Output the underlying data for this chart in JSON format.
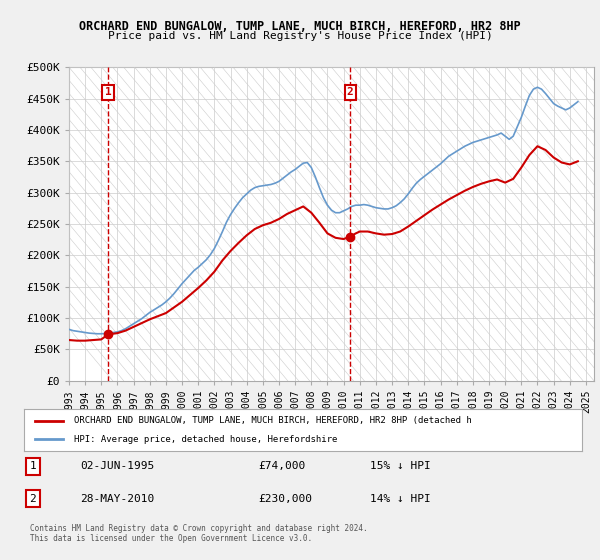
{
  "title": "ORCHARD END BUNGALOW, TUMP LANE, MUCH BIRCH, HEREFORD, HR2 8HP",
  "subtitle": "Price paid vs. HM Land Registry's House Price Index (HPI)",
  "ylabel_ticks": [
    "£0",
    "£50K",
    "£100K",
    "£150K",
    "£200K",
    "£250K",
    "£300K",
    "£350K",
    "£400K",
    "£450K",
    "£500K"
  ],
  "ytick_vals": [
    0,
    50000,
    100000,
    150000,
    200000,
    250000,
    300000,
    350000,
    400000,
    450000,
    500000
  ],
  "ylim": [
    0,
    500000
  ],
  "xlim_start": 1993.0,
  "xlim_end": 2025.5,
  "sale1_x": 1995.42,
  "sale1_y": 74000,
  "sale2_x": 2010.41,
  "sale2_y": 230000,
  "sale1_label": "02-JUN-1995",
  "sale1_price": "£74,000",
  "sale1_hpi": "15% ↓ HPI",
  "sale2_label": "28-MAY-2010",
  "sale2_price": "£230,000",
  "sale2_hpi": "14% ↓ HPI",
  "line1_label": "ORCHARD END BUNGALOW, TUMP LANE, MUCH BIRCH, HEREFORD, HR2 8HP (detached h",
  "line2_label": "HPI: Average price, detached house, Herefordshire",
  "red_color": "#cc0000",
  "blue_color": "#6699cc",
  "background_color": "#f0f0f0",
  "plot_bg_color": "#ffffff",
  "grid_color": "#cccccc",
  "footnote": "Contains HM Land Registry data © Crown copyright and database right 2024.\nThis data is licensed under the Open Government Licence v3.0.",
  "hpi_data_x": [
    1993.0,
    1993.25,
    1993.5,
    1993.75,
    1994.0,
    1994.25,
    1994.5,
    1994.75,
    1995.0,
    1995.25,
    1995.5,
    1995.75,
    1996.0,
    1996.25,
    1996.5,
    1996.75,
    1997.0,
    1997.25,
    1997.5,
    1997.75,
    1998.0,
    1998.25,
    1998.5,
    1998.75,
    1999.0,
    1999.25,
    1999.5,
    1999.75,
    2000.0,
    2000.25,
    2000.5,
    2000.75,
    2001.0,
    2001.25,
    2001.5,
    2001.75,
    2002.0,
    2002.25,
    2002.5,
    2002.75,
    2003.0,
    2003.25,
    2003.5,
    2003.75,
    2004.0,
    2004.25,
    2004.5,
    2004.75,
    2005.0,
    2005.25,
    2005.5,
    2005.75,
    2006.0,
    2006.25,
    2006.5,
    2006.75,
    2007.0,
    2007.25,
    2007.5,
    2007.75,
    2008.0,
    2008.25,
    2008.5,
    2008.75,
    2009.0,
    2009.25,
    2009.5,
    2009.75,
    2010.0,
    2010.25,
    2010.5,
    2010.75,
    2011.0,
    2011.25,
    2011.5,
    2011.75,
    2012.0,
    2012.25,
    2012.5,
    2012.75,
    2013.0,
    2013.25,
    2013.5,
    2013.75,
    2014.0,
    2014.25,
    2014.5,
    2014.75,
    2015.0,
    2015.25,
    2015.5,
    2015.75,
    2016.0,
    2016.25,
    2016.5,
    2016.75,
    2017.0,
    2017.25,
    2017.5,
    2017.75,
    2018.0,
    2018.25,
    2018.5,
    2018.75,
    2019.0,
    2019.25,
    2019.5,
    2019.75,
    2020.0,
    2020.25,
    2020.5,
    2020.75,
    2021.0,
    2021.25,
    2021.5,
    2021.75,
    2022.0,
    2022.25,
    2022.5,
    2022.75,
    2023.0,
    2023.25,
    2023.5,
    2023.75,
    2024.0,
    2024.25,
    2024.5
  ],
  "hpi_data_y": [
    82000,
    80000,
    79000,
    78000,
    77000,
    76000,
    75500,
    75000,
    75000,
    75500,
    76000,
    77000,
    78000,
    80000,
    83000,
    87000,
    91000,
    95000,
    99000,
    104000,
    109000,
    113000,
    117000,
    121000,
    126000,
    132000,
    139000,
    147000,
    155000,
    162000,
    169000,
    176000,
    181000,
    187000,
    193000,
    201000,
    211000,
    224000,
    238000,
    253000,
    265000,
    275000,
    284000,
    292000,
    298000,
    304000,
    308000,
    310000,
    311000,
    312000,
    313000,
    315000,
    318000,
    323000,
    328000,
    333000,
    337000,
    342000,
    347000,
    348000,
    340000,
    325000,
    308000,
    292000,
    280000,
    272000,
    268000,
    268000,
    271000,
    274000,
    278000,
    280000,
    280000,
    281000,
    280000,
    278000,
    276000,
    275000,
    274000,
    274000,
    276000,
    279000,
    284000,
    290000,
    298000,
    307000,
    315000,
    321000,
    326000,
    331000,
    336000,
    341000,
    346000,
    352000,
    358000,
    362000,
    366000,
    370000,
    374000,
    377000,
    380000,
    382000,
    384000,
    386000,
    388000,
    390000,
    392000,
    395000,
    390000,
    385000,
    390000,
    405000,
    420000,
    438000,
    455000,
    465000,
    468000,
    465000,
    458000,
    450000,
    442000,
    438000,
    435000,
    432000,
    435000,
    440000,
    445000
  ],
  "price_data_x": [
    1993.0,
    1993.5,
    1994.0,
    1994.5,
    1995.0,
    1995.42,
    1996.0,
    1996.5,
    1997.0,
    1997.5,
    1998.0,
    1998.5,
    1999.0,
    1999.5,
    2000.0,
    2000.5,
    2001.0,
    2001.5,
    2002.0,
    2002.5,
    2003.0,
    2003.5,
    2004.0,
    2004.5,
    2005.0,
    2005.5,
    2006.0,
    2006.5,
    2007.0,
    2007.5,
    2008.0,
    2008.5,
    2009.0,
    2009.5,
    2010.0,
    2010.41,
    2010.75,
    2011.0,
    2011.5,
    2012.0,
    2012.5,
    2013.0,
    2013.5,
    2014.0,
    2014.5,
    2015.0,
    2015.5,
    2016.0,
    2016.5,
    2017.0,
    2017.5,
    2018.0,
    2018.5,
    2019.0,
    2019.5,
    2020.0,
    2020.5,
    2021.0,
    2021.5,
    2022.0,
    2022.5,
    2023.0,
    2023.5,
    2024.0,
    2024.5
  ],
  "price_data_y": [
    65000,
    64000,
    64000,
    65000,
    66000,
    74000,
    76000,
    80000,
    86000,
    92000,
    98000,
    103000,
    108000,
    117000,
    126000,
    137000,
    148000,
    160000,
    174000,
    192000,
    207000,
    220000,
    232000,
    242000,
    248000,
    252000,
    258000,
    266000,
    272000,
    278000,
    268000,
    252000,
    235000,
    228000,
    226000,
    230000,
    235000,
    238000,
    238000,
    235000,
    233000,
    234000,
    238000,
    246000,
    255000,
    264000,
    273000,
    281000,
    289000,
    296000,
    303000,
    309000,
    314000,
    318000,
    321000,
    316000,
    322000,
    340000,
    360000,
    374000,
    368000,
    356000,
    348000,
    345000,
    350000
  ]
}
